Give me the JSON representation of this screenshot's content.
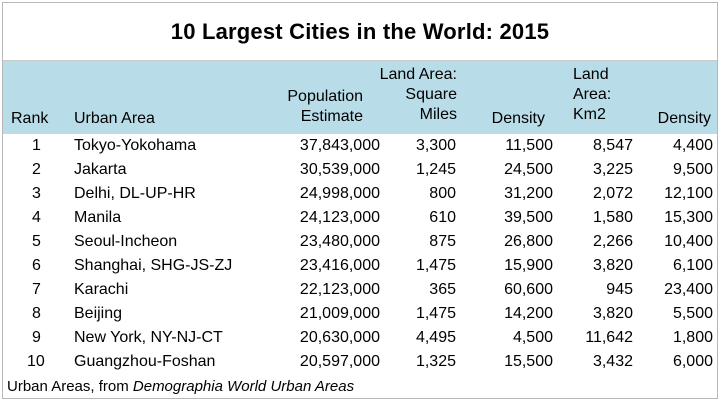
{
  "title": "10 Largest Cities in the World: 2015",
  "columns": {
    "rank": "Rank",
    "urban_area": "Urban Area",
    "population": [
      "Population",
      "Estimate"
    ],
    "land_sq_mi": [
      "Land Area:",
      "Square",
      "Miles"
    ],
    "density_mi": "Density",
    "land_km2": [
      "Land",
      "Area:",
      "Km2"
    ],
    "density_km": "Density"
  },
  "rows": [
    {
      "rank": "1",
      "area": "Tokyo-Yokohama",
      "population": "37,843,000",
      "sq_miles": "3,300",
      "density_mi": "11,500",
      "km2": "8,547",
      "density_km": "4,400"
    },
    {
      "rank": "2",
      "area": "Jakarta",
      "population": "30,539,000",
      "sq_miles": "1,245",
      "density_mi": "24,500",
      "km2": "3,225",
      "density_km": "9,500"
    },
    {
      "rank": "3",
      "area": "Delhi, DL-UP-HR",
      "population": "24,998,000",
      "sq_miles": "800",
      "density_mi": "31,200",
      "km2": "2,072",
      "density_km": "12,100"
    },
    {
      "rank": "4",
      "area": "Manila",
      "population": "24,123,000",
      "sq_miles": "610",
      "density_mi": "39,500",
      "km2": "1,580",
      "density_km": "15,300"
    },
    {
      "rank": "5",
      "area": "Seoul-Incheon",
      "population": "23,480,000",
      "sq_miles": "875",
      "density_mi": "26,800",
      "km2": "2,266",
      "density_km": "10,400"
    },
    {
      "rank": "6",
      "area": "Shanghai, SHG-JS-ZJ",
      "population": "23,416,000",
      "sq_miles": "1,475",
      "density_mi": "15,900",
      "km2": "3,820",
      "density_km": "6,100"
    },
    {
      "rank": "7",
      "area": "Karachi",
      "population": "22,123,000",
      "sq_miles": "365",
      "density_mi": "60,600",
      "km2": "945",
      "density_km": "23,400"
    },
    {
      "rank": "8",
      "area": "Beijing",
      "population": "21,009,000",
      "sq_miles": "1,475",
      "density_mi": "14,200",
      "km2": "3,820",
      "density_km": "5,500"
    },
    {
      "rank": "9",
      "area": "New York, NY-NJ-CT",
      "population": "20,630,000",
      "sq_miles": "4,495",
      "density_mi": "4,500",
      "km2": "11,642",
      "density_km": "1,800"
    },
    {
      "rank": "10",
      "area": "Guangzhou-Foshan",
      "population": "20,597,000",
      "sq_miles": "1,325",
      "density_mi": "15,500",
      "km2": "3,432",
      "density_km": "6,000"
    }
  ],
  "source": {
    "prefix": "Urban Areas, from ",
    "italic": "Demographia World Urban Areas"
  },
  "colors": {
    "header_background": "#b9dde8"
  }
}
